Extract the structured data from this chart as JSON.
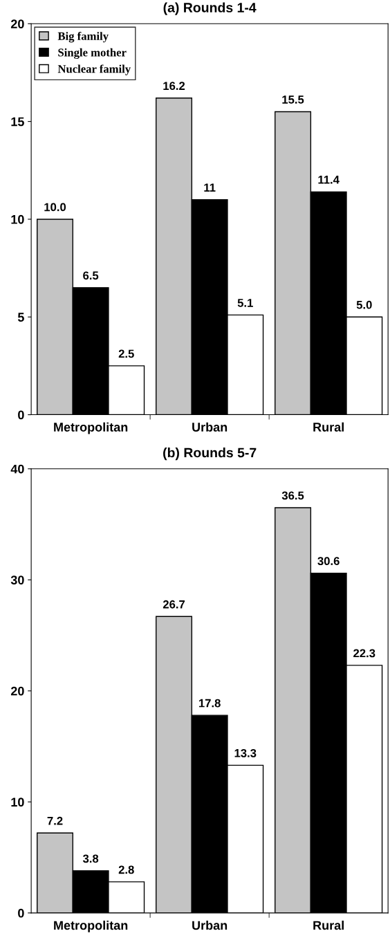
{
  "chart_data": [
    {
      "type": "bar",
      "title": "(a) Rounds 1-4",
      "categories": [
        "Metropolitan",
        "Urban",
        "Rural"
      ],
      "ylim": [
        0,
        20
      ],
      "yticks": [
        0,
        5,
        10,
        15,
        20
      ],
      "grid": false,
      "legend": "top left",
      "series": [
        {
          "name": "Big family",
          "color": "#c4c4c4",
          "values": [
            10.0,
            16.2,
            15.5
          ],
          "value_labels": [
            "10.0",
            "16.2",
            "15.5"
          ]
        },
        {
          "name": "Single mother",
          "color": "#000000",
          "values": [
            6.5,
            11,
            11.4
          ],
          "value_labels": [
            "6.5",
            "11",
            "11.4"
          ]
        },
        {
          "name": "Nuclear family",
          "color": "#ffffff",
          "values": [
            2.5,
            5.1,
            5.0
          ],
          "value_labels": [
            "2.5",
            "5.1",
            "5.0"
          ]
        }
      ]
    },
    {
      "type": "bar",
      "title": "(b) Rounds 5-7",
      "categories": [
        "Metropolitan",
        "Urban",
        "Rural"
      ],
      "ylim": [
        0,
        40
      ],
      "yticks": [
        0,
        10,
        20,
        30,
        40
      ],
      "grid": false,
      "series": [
        {
          "color": "#c4c4c4",
          "values": [
            7.2,
            26.7,
            36.5
          ],
          "value_labels": [
            "7.2",
            "26.7",
            "36.5"
          ]
        },
        {
          "color": "#000000",
          "values": [
            3.8,
            17.8,
            30.6
          ],
          "value_labels": [
            "3.8",
            "17.8",
            "30.6"
          ]
        },
        {
          "color": "#ffffff",
          "values": [
            2.8,
            13.3,
            22.3
          ],
          "value_labels": [
            "2.8",
            "13.3",
            "22.3"
          ]
        }
      ]
    }
  ]
}
